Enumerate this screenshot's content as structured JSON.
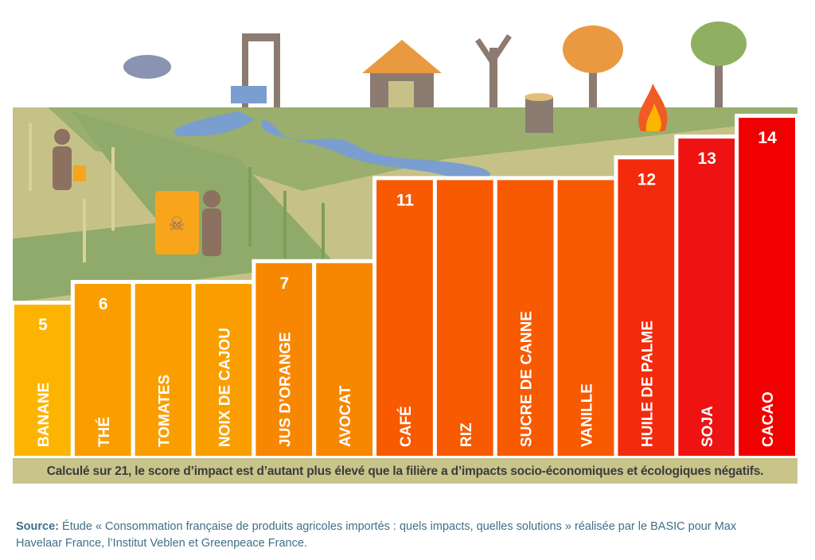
{
  "chart_data": {
    "type": "bar",
    "categories": [
      "BANANE",
      "THÉ",
      "TOMATES",
      "NOIX DE CAJOU",
      "JUS D’ORANGE",
      "AVOCAT",
      "CAFÉ",
      "RIZ",
      "SUCRE DE CANNE",
      "VANILLE",
      "HUILE DE PALME",
      "SOJA",
      "CACAO"
    ],
    "values": [
      5,
      6,
      6,
      6,
      7,
      7,
      11,
      11,
      11,
      11,
      12,
      13,
      14
    ],
    "value_labels": [
      "5",
      "6",
      "",
      "",
      "7",
      "",
      "11",
      "",
      "",
      "",
      "12",
      "13",
      "14"
    ],
    "colors": [
      "#fcb400",
      "#fa9e00",
      "#fa9e00",
      "#fa9e00",
      "#f78700",
      "#f78700",
      "#f75a00",
      "#f75a00",
      "#f75a00",
      "#f75a00",
      "#f42a0c",
      "#ee1212",
      "#f00000"
    ],
    "orientation": "vertical",
    "grid": false,
    "legend": "none",
    "caption": "Calculé sur 21, le score d’impact est d’autant plus élevé que la filière a d’impacts socio-économiques et écologiques négatifs."
  },
  "source": {
    "label": "Source:",
    "text": " Étude « Consommation française de produits agricoles importés : quels impacts, quelles solutions » réalisée par le BASIC pour Max Havelaar France, l’Institut Veblen et Greenpeace France."
  }
}
